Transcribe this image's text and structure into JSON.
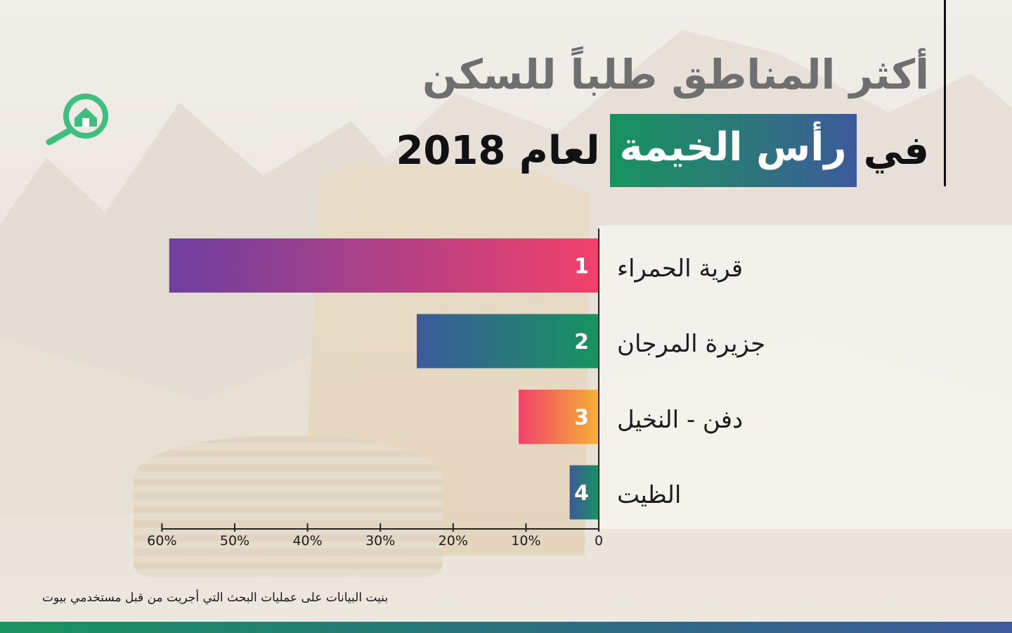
{
  "title": {
    "line1": "أكثر المناطق طلباً للسكن",
    "line2_prefix": "في",
    "line2_highlight": "رأس الخيمة",
    "line2_suffix": "لعام 2018"
  },
  "footnote": "بنيت البيانات على عمليات البحث التي أجريت من قبل مستخدمي بيوت",
  "brand": {
    "logo_icon": "house-search-icon",
    "green": "#17935f",
    "blue": "#3c5a9b"
  },
  "chart_data": {
    "type": "bar",
    "orientation": "horizontal-leftward",
    "categories": [
      "قرية الحمراء",
      "جزيرة المرجان",
      "دفن - النخيل",
      "الظيت"
    ],
    "ranks": [
      "1",
      "2",
      "3",
      "4"
    ],
    "values": [
      59,
      25,
      11,
      4
    ],
    "bar_gradients": [
      [
        "#6f3fa0",
        "#f1416b"
      ],
      [
        "#3c5a9b",
        "#17935f"
      ],
      [
        "#f1416b",
        "#f6b233"
      ],
      [
        "#3c5a9b",
        "#17935f"
      ]
    ],
    "x_ticks": [
      "0",
      "10%",
      "20%",
      "30%",
      "40%",
      "50%",
      "60%"
    ],
    "x_tick_values": [
      0,
      10,
      20,
      30,
      40,
      50,
      60
    ],
    "xlim": [
      0,
      60
    ],
    "title": "",
    "xlabel": "",
    "ylabel": "",
    "grid": false
  }
}
